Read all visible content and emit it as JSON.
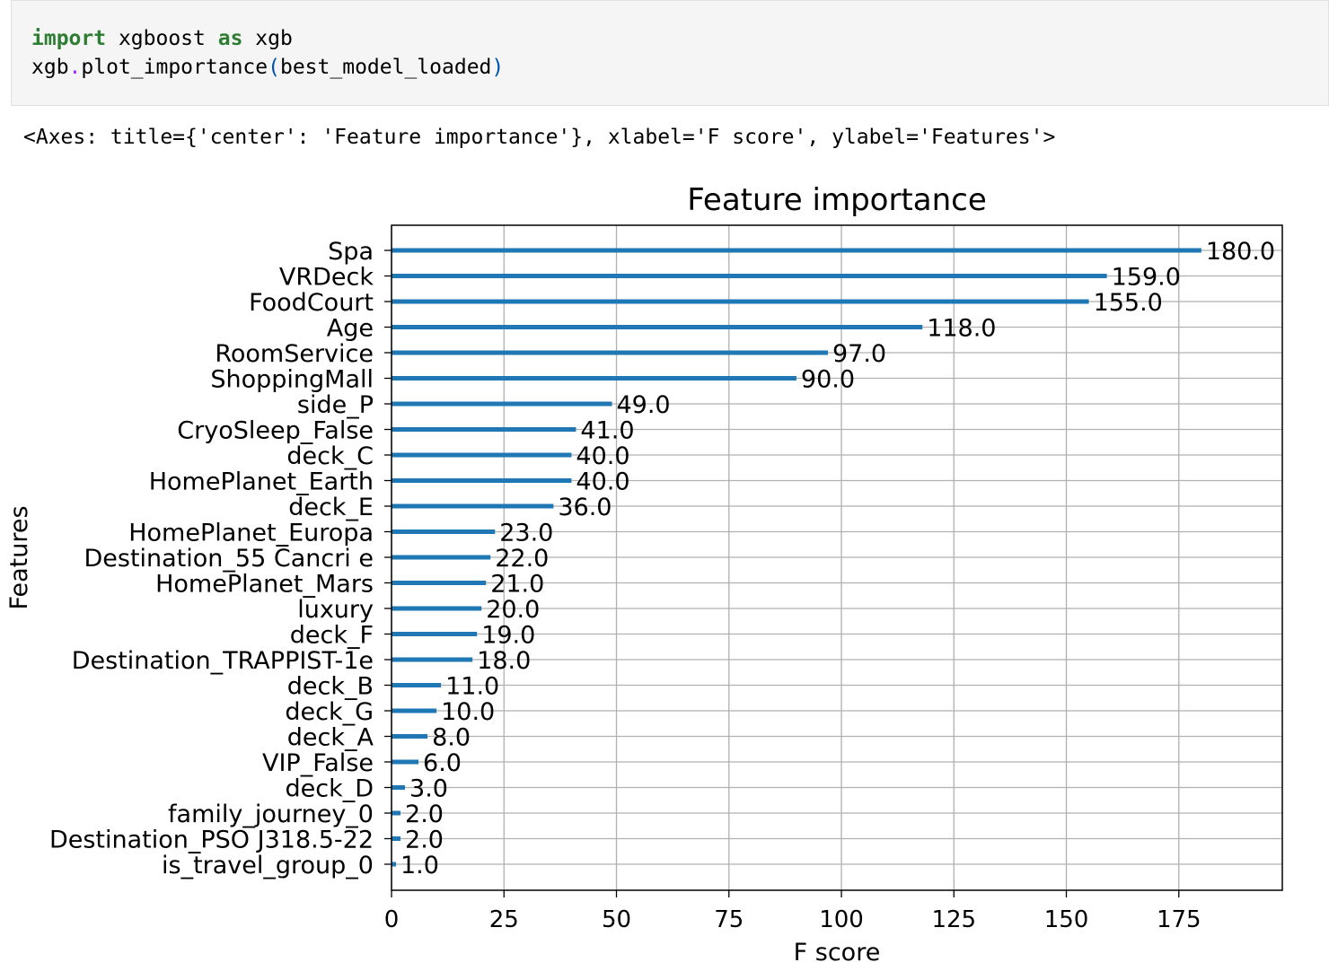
{
  "code": {
    "line1": {
      "kw1": "import",
      "mid": " xgboost ",
      "kw2": "as",
      "end": " xgb"
    },
    "line2": {
      "obj": "xgb",
      "dot": ".",
      "fn": "plot_importance",
      "open": "(",
      "arg": "best_model_loaded",
      "close": ")"
    }
  },
  "output_text": "<Axes: title={'center': 'Feature importance'}, xlabel='F score', ylabel='Features'>",
  "colors": {
    "bar": "#1f77b4",
    "grid": "#b0b0b0"
  },
  "chart_data": {
    "type": "bar",
    "orientation": "horizontal",
    "title": "Feature importance",
    "xlabel": "F score",
    "ylabel": "Features",
    "xlim": [
      0,
      198
    ],
    "xticks": [
      0,
      25,
      50,
      75,
      100,
      125,
      150,
      175
    ],
    "grid": true,
    "categories": [
      "Spa",
      "VRDeck",
      "FoodCourt",
      "Age",
      "RoomService",
      "ShoppingMall",
      "side_P",
      "CryoSleep_False",
      "deck_C",
      "HomePlanet_Earth",
      "deck_E",
      "HomePlanet_Europa",
      "Destination_55 Cancri e",
      "HomePlanet_Mars",
      "luxury",
      "deck_F",
      "Destination_TRAPPIST-1e",
      "deck_B",
      "deck_G",
      "deck_A",
      "VIP_False",
      "deck_D",
      "family_journey_0",
      "Destination_PSO J318.5-22",
      "is_travel_group_0"
    ],
    "values": [
      180,
      159,
      155,
      118,
      97,
      90,
      49,
      41,
      40,
      40,
      36,
      23,
      22,
      21,
      20,
      19,
      18,
      11,
      10,
      8,
      6,
      3,
      2,
      2,
      1
    ],
    "value_labels": [
      "180.0",
      "159.0",
      "155.0",
      "118.0",
      "97.0",
      "90.0",
      "49.0",
      "41.0",
      "40.0",
      "40.0",
      "36.0",
      "23.0",
      "22.0",
      "21.0",
      "20.0",
      "19.0",
      "18.0",
      "11.0",
      "10.0",
      "8.0",
      "6.0",
      "3.0",
      "2.0",
      "2.0",
      "1.0"
    ]
  }
}
